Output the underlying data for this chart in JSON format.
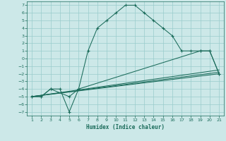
{
  "xlabel": "Humidex (Indice chaleur)",
  "background_color": "#cce8e8",
  "grid_color": "#99cccc",
  "line_color": "#1a6b5a",
  "xlim": [
    0.5,
    21.5
  ],
  "ylim": [
    -7.5,
    7.5
  ],
  "xticks": [
    1,
    2,
    3,
    4,
    5,
    6,
    7,
    8,
    9,
    10,
    11,
    12,
    13,
    14,
    15,
    16,
    17,
    18,
    19,
    20,
    21
  ],
  "yticks": [
    -7,
    -6,
    -5,
    -4,
    -3,
    -2,
    -1,
    0,
    1,
    2,
    3,
    4,
    5,
    6,
    7
  ],
  "curve1_x": [
    1,
    2,
    3,
    4,
    5,
    6,
    7,
    8,
    9,
    10,
    11,
    12,
    13,
    14,
    15,
    16,
    17,
    18,
    19,
    20,
    21
  ],
  "curve1_y": [
    -5,
    -5,
    -4,
    -4,
    -7,
    -4,
    1,
    4,
    5,
    6,
    7,
    7,
    6,
    5,
    4,
    3,
    1,
    1,
    1,
    1,
    -2
  ],
  "curve2_x": [
    1,
    2,
    3,
    5,
    6,
    19,
    20,
    21
  ],
  "curve2_y": [
    -5,
    -5,
    -4,
    -5,
    -4,
    1,
    1,
    -2
  ],
  "line1_x": [
    1,
    21
  ],
  "line1_y": [
    -5,
    -1.5
  ],
  "line2_x": [
    1,
    21
  ],
  "line2_y": [
    -5,
    -1.8
  ],
  "line3_x": [
    1,
    21
  ],
  "line3_y": [
    -5,
    -2.0
  ]
}
